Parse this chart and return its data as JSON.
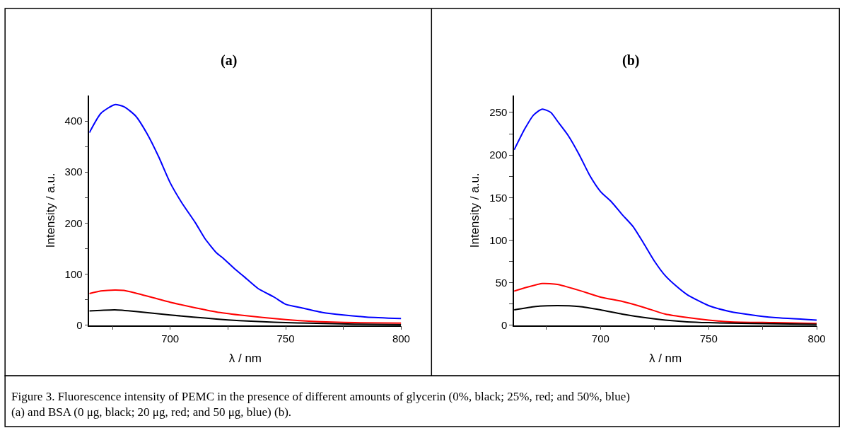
{
  "chart_data": [
    {
      "type": "line",
      "title": "(a)",
      "xlabel": "λ / nm",
      "ylabel": "Intensity / a.u.",
      "xlim": [
        665,
        800
      ],
      "ylim": [
        0,
        450
      ],
      "xticks": [
        {
          "value": 675,
          "label": null
        },
        700,
        {
          "value": 725,
          "label": null
        },
        750,
        {
          "value": 775,
          "label": null
        },
        800
      ],
      "yticks": [
        0,
        {
          "value": 50,
          "label": null
        },
        100,
        {
          "value": 150,
          "label": null
        },
        200,
        {
          "value": 250,
          "label": null
        },
        300,
        {
          "value": 350,
          "label": null
        },
        400
      ],
      "marker": "none",
      "line_style": "solid",
      "series": [
        {
          "color": "#0000ff",
          "x": [
            665,
            670,
            676,
            680,
            685,
            690,
            695,
            700,
            705,
            711,
            715,
            720,
            723,
            728,
            732,
            738,
            745,
            750,
            757,
            766,
            775,
            785,
            800
          ],
          "values": [
            377,
            415,
            432,
            428,
            410,
            375,
            330,
            279,
            240,
            200,
            170,
            142,
            131,
            110,
            95,
            72,
            55,
            41,
            34,
            25,
            20,
            16,
            13
          ]
        },
        {
          "color": "#ff0000",
          "x": [
            665,
            670,
            676,
            680,
            685,
            690,
            700,
            710,
            720,
            730,
            740,
            750,
            760,
            770,
            780,
            800
          ],
          "values": [
            62,
            67,
            69,
            68,
            63,
            57,
            45,
            35,
            26,
            20,
            15,
            11,
            8,
            6,
            5,
            4
          ]
        },
        {
          "color": "#000000",
          "x": [
            665,
            670,
            676,
            685,
            700,
            710,
            720,
            730,
            740,
            750,
            760,
            780,
            800
          ],
          "values": [
            28,
            29,
            30,
            27,
            20,
            16,
            12,
            9,
            7,
            5,
            4,
            2,
            1
          ]
        }
      ]
    },
    {
      "type": "line",
      "title": "(b)",
      "xlabel": "λ / nm",
      "ylabel": "Intensity / a.u.",
      "xlim": [
        660,
        800
      ],
      "ylim": [
        0,
        270
      ],
      "xticks": [
        {
          "value": 675,
          "label": null
        },
        700,
        {
          "value": 725,
          "label": null
        },
        750,
        {
          "value": 775,
          "label": null
        },
        800
      ],
      "yticks": [
        0,
        {
          "value": 25,
          "label": null
        },
        50,
        {
          "value": 75,
          "label": null
        },
        100,
        {
          "value": 125,
          "label": null
        },
        150,
        {
          "value": 175,
          "label": null
        },
        200,
        {
          "value": 225,
          "label": null
        },
        250
      ],
      "marker": "none",
      "line_style": "solid",
      "annotations": [
        "Figure 3. Fluorescence intensity of PEMC in the presence of different amounts of glycerin (0%, black; 25%, red; and 50%, blue) (a) and BSA (0 μg, black; 20 μg, red; and 50 μg, blue) (b)."
      ],
      "series": [
        {
          "color": "#0000ff",
          "x": [
            660,
            665,
            669,
            673,
            677,
            680,
            685,
            690,
            695,
            700,
            705,
            710,
            715,
            720,
            725,
            730,
            735,
            740,
            750,
            760,
            770,
            780,
            800
          ],
          "values": [
            206,
            231,
            247,
            254,
            250,
            240,
            223,
            201,
            176,
            157,
            145,
            130,
            116,
            96,
            75,
            58,
            46,
            36,
            23,
            16,
            12,
            9,
            6
          ]
        },
        {
          "color": "#ff0000",
          "x": [
            660,
            665,
            673,
            680,
            690,
            700,
            710,
            720,
            730,
            740,
            750,
            760,
            780,
            800
          ],
          "values": [
            40,
            44,
            49,
            48,
            41,
            33,
            28,
            21,
            13,
            9,
            6,
            4,
            3,
            2
          ]
        },
        {
          "color": "#000000",
          "x": [
            660,
            670,
            680,
            690,
            700,
            710,
            720,
            730,
            740,
            750,
            770,
            800
          ],
          "values": [
            18,
            22,
            23,
            22,
            18,
            13,
            9,
            6,
            4,
            3,
            2,
            1
          ]
        }
      ]
    }
  ]
}
